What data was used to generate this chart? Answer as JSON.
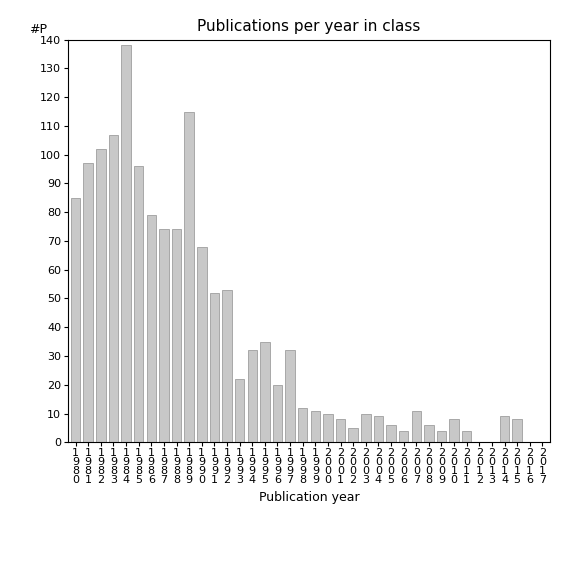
{
  "title": "Publications per year in class",
  "xlabel": "Publication year",
  "ylabel": "#P",
  "bar_color": "#c8c8c8",
  "edge_color": "#909090",
  "years": [
    "1980",
    "1981",
    "1982",
    "1983",
    "1984",
    "1985",
    "1986",
    "1987",
    "1988",
    "1989",
    "1990",
    "1991",
    "1992",
    "1993",
    "1994",
    "1995",
    "1996",
    "1997",
    "1998",
    "1999",
    "2000",
    "2001",
    "2002",
    "2003",
    "2004",
    "2005",
    "2006",
    "2007",
    "2008",
    "2009",
    "2010",
    "2011",
    "2012",
    "2013",
    "2014",
    "2015",
    "2016",
    "2017"
  ],
  "values": [
    85,
    97,
    102,
    107,
    138,
    96,
    79,
    74,
    74,
    115,
    68,
    52,
    53,
    22,
    32,
    35,
    20,
    32,
    12,
    11,
    10,
    8,
    5,
    10,
    9,
    6,
    4,
    11,
    6,
    4,
    8,
    4,
    0,
    0,
    9,
    8,
    0,
    0
  ],
  "ylim": [
    0,
    140
  ],
  "yticks": [
    0,
    10,
    20,
    30,
    40,
    50,
    60,
    70,
    80,
    90,
    100,
    110,
    120,
    130,
    140
  ],
  "background_color": "#ffffff",
  "title_fontsize": 11,
  "label_fontsize": 9,
  "tick_fontsize": 8
}
